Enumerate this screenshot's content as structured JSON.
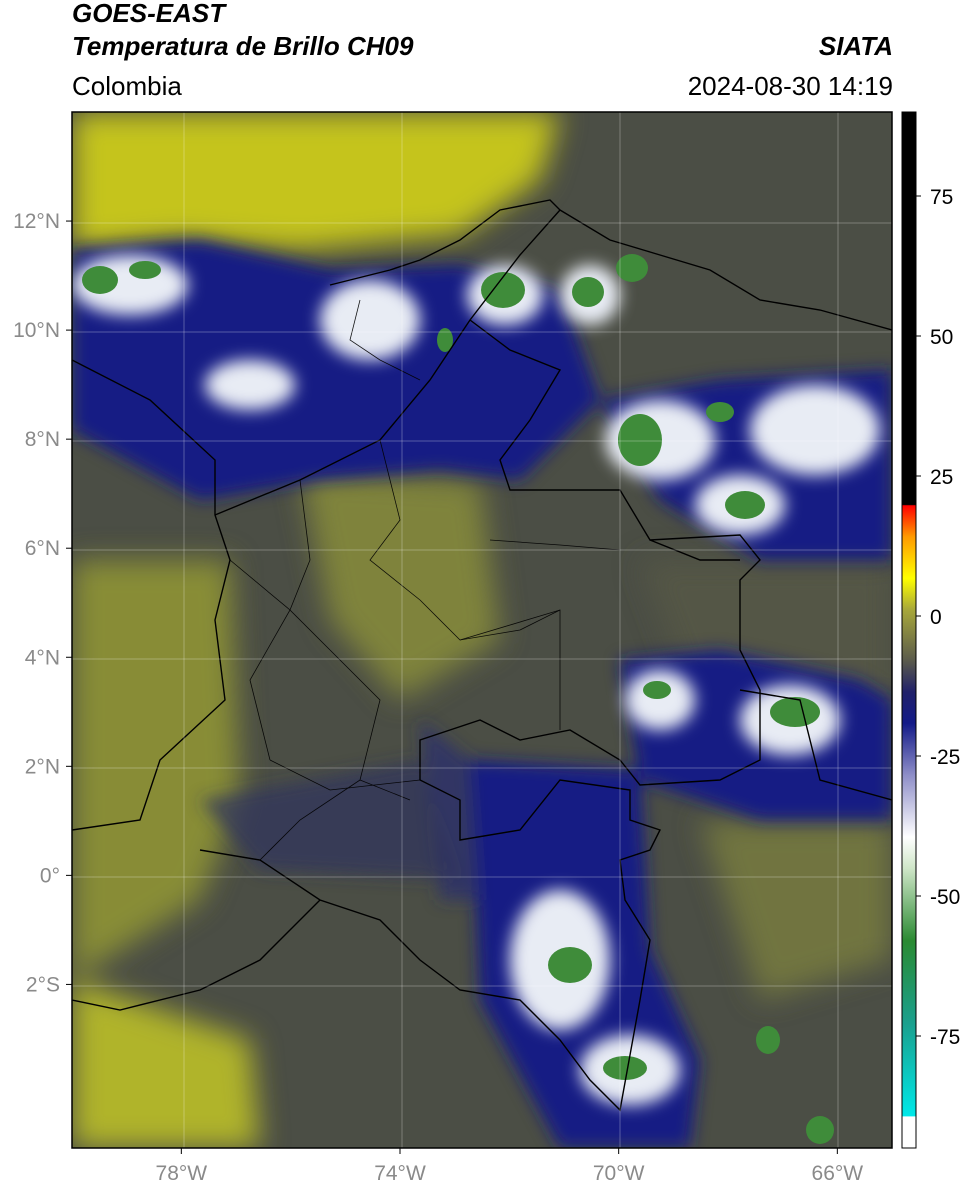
{
  "header": {
    "satellite": "GOES-EAST",
    "product": "Temperatura de Brillo CH09",
    "agency": "SIATA",
    "region": "Colombia",
    "timestamp": "2024-08-30 14:19"
  },
  "map": {
    "lon_range": [
      -80,
      -65
    ],
    "lat_range": [
      -5,
      14
    ],
    "lat_ticks": [
      {
        "value": 12,
        "label": "12°N"
      },
      {
        "value": 10,
        "label": "10°N"
      },
      {
        "value": 8,
        "label": "8°N"
      },
      {
        "value": 6,
        "label": "6°N"
      },
      {
        "value": 4,
        "label": "4°N"
      },
      {
        "value": 2,
        "label": "2°N"
      },
      {
        "value": 0,
        "label": "0°"
      },
      {
        "value": -2,
        "label": "2°S"
      }
    ],
    "lon_ticks": [
      {
        "value": -78,
        "label": "78°W"
      },
      {
        "value": -74,
        "label": "74°W"
      },
      {
        "value": -70,
        "label": "70°W"
      },
      {
        "value": -66,
        "label": "66°W"
      }
    ],
    "gridlines": true,
    "colors": {
      "warm": "#b8bc28",
      "mid": "#4a4d44",
      "cold": "#111a80",
      "very_cold": "#e8ecf4",
      "coldest": "#3f8c3a",
      "border": "#000000"
    }
  },
  "colorbar": {
    "range": [
      -95,
      90
    ],
    "ticks": [
      {
        "value": 75,
        "label": "75"
      },
      {
        "value": 50,
        "label": "50"
      },
      {
        "value": 25,
        "label": "25"
      },
      {
        "value": 0,
        "label": "0"
      },
      {
        "value": -25,
        "label": "-25"
      },
      {
        "value": -50,
        "label": "-50"
      },
      {
        "value": -75,
        "label": "-75"
      }
    ]
  }
}
